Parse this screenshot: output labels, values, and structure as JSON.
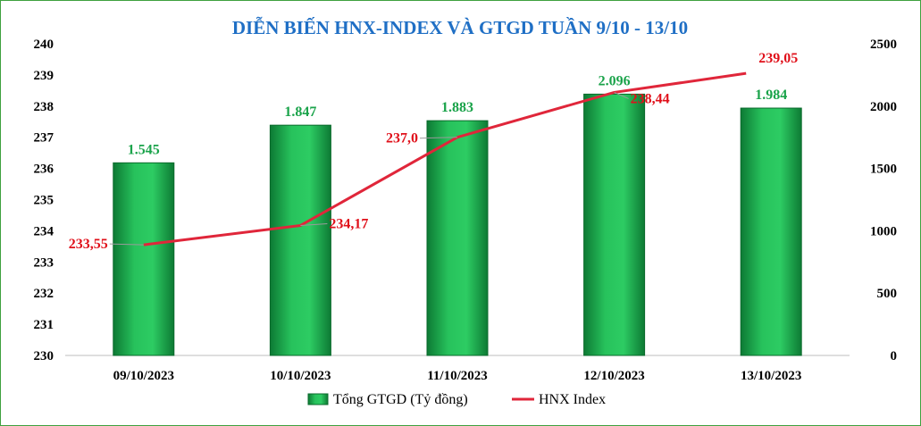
{
  "chart_data": {
    "type": "bar+line",
    "title": "DIỄN BIẾN HNX-INDEX VÀ GTGD TUẦN 9/10 - 13/10",
    "categories": [
      "09/10/2023",
      "10/10/2023",
      "11/10/2023",
      "12/10/2023",
      "13/10/2023"
    ],
    "series": [
      {
        "name": "Tổng GTGD (Tỷ đồng)",
        "type": "bar",
        "axis": "right",
        "values": [
          1545,
          1847,
          1883,
          2096,
          1984
        ],
        "labels": [
          "1.545",
          "1.847",
          "1.883",
          "2.096",
          "1.984"
        ],
        "color": "#1aa34a"
      },
      {
        "name": "HNX Index",
        "type": "line",
        "axis": "left",
        "values": [
          233.55,
          234.17,
          237.0,
          238.44,
          239.05
        ],
        "labels": [
          "233,55",
          "234,17",
          "237,0",
          "238,44",
          "239,05"
        ],
        "color": "#e0263a"
      }
    ],
    "y_left": {
      "min": 230,
      "max": 240,
      "ticks": [
        "230",
        "231",
        "232",
        "233",
        "234",
        "235",
        "236",
        "237",
        "238",
        "239",
        "240"
      ]
    },
    "y_right": {
      "min": 0,
      "max": 2500,
      "ticks": [
        "0",
        "500",
        "1000",
        "1500",
        "2000",
        "2500"
      ]
    },
    "grid": false,
    "legend": "bottom"
  }
}
